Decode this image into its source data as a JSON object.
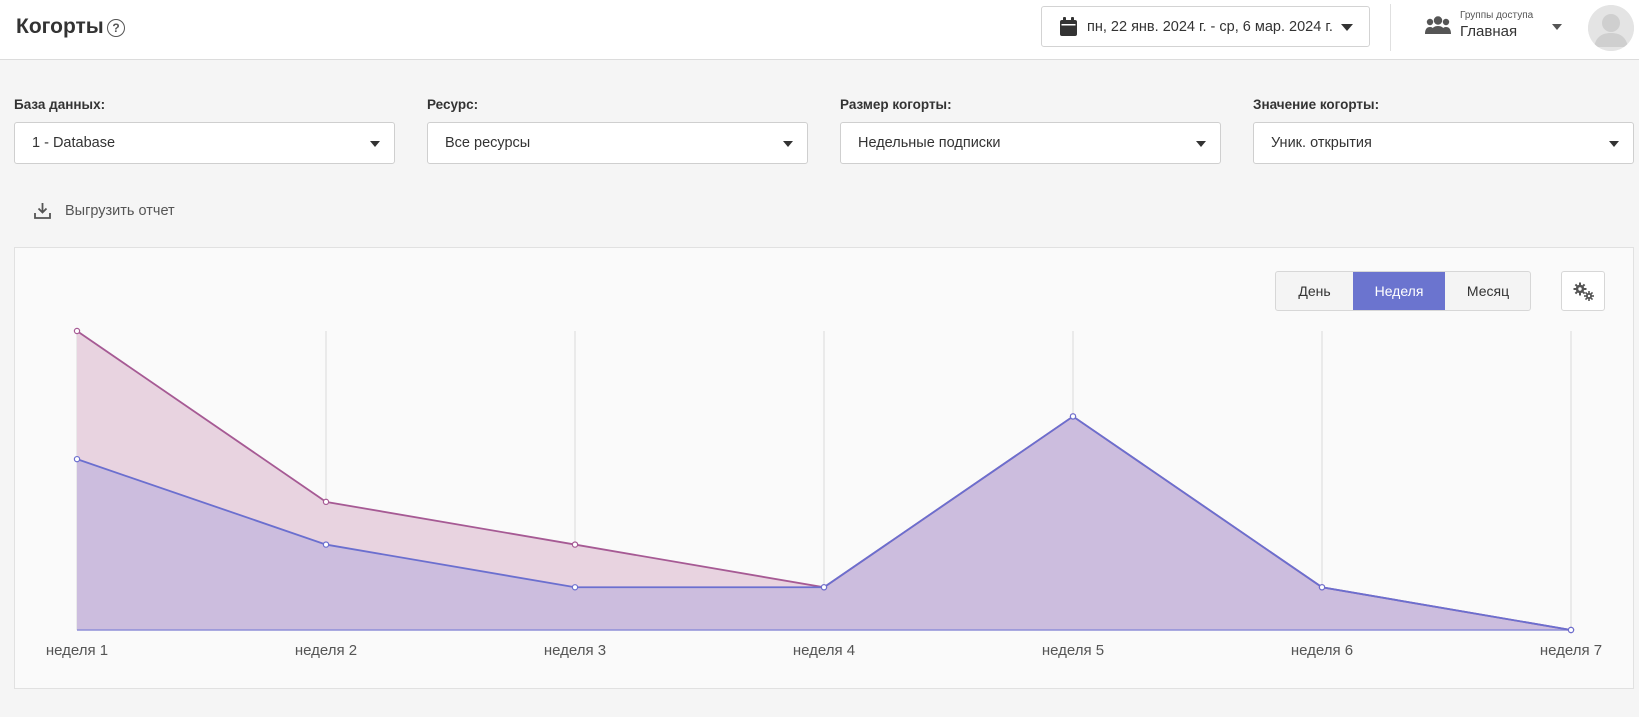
{
  "header": {
    "title": "Когорты",
    "help_icon": "question-circle-icon",
    "date_range": "пн, 22 янв. 2024 г. - ср, 6 мар. 2024 г.",
    "access_group": {
      "caption": "Группы доступа",
      "value": "Главная"
    }
  },
  "filters": [
    {
      "label": "База данных:",
      "value": "1 - Database"
    },
    {
      "label": "Ресурс:",
      "value": "Все ресурсы"
    },
    {
      "label": "Размер когорты:",
      "value": "Недельные подписки"
    },
    {
      "label": "Значение когорты:",
      "value": "Уник. открытия"
    }
  ],
  "export_label": "Выгрузить отчет",
  "period_buttons": [
    {
      "label": "День",
      "active": false
    },
    {
      "label": "Неделя",
      "active": true
    },
    {
      "label": "Месяц",
      "active": false
    }
  ],
  "chart_data": {
    "type": "area",
    "categories": [
      "неделя 1",
      "неделя 2",
      "неделя 3",
      "неделя 4",
      "неделя 5",
      "неделя 6",
      "неделя 7"
    ],
    "ylim": [
      0,
      7
    ],
    "grid": "vertical",
    "series": [
      {
        "values": [
          7,
          3,
          2,
          1,
          5,
          1,
          0
        ],
        "color": "#a65a94",
        "fill": "#e8d3e0"
      },
      {
        "values": [
          4,
          2,
          1,
          1,
          5,
          1,
          0
        ],
        "color": "#6b6fcf",
        "fill": "#c9bbdd"
      }
    ]
  },
  "colors": {
    "accent": "#6b74cf"
  }
}
